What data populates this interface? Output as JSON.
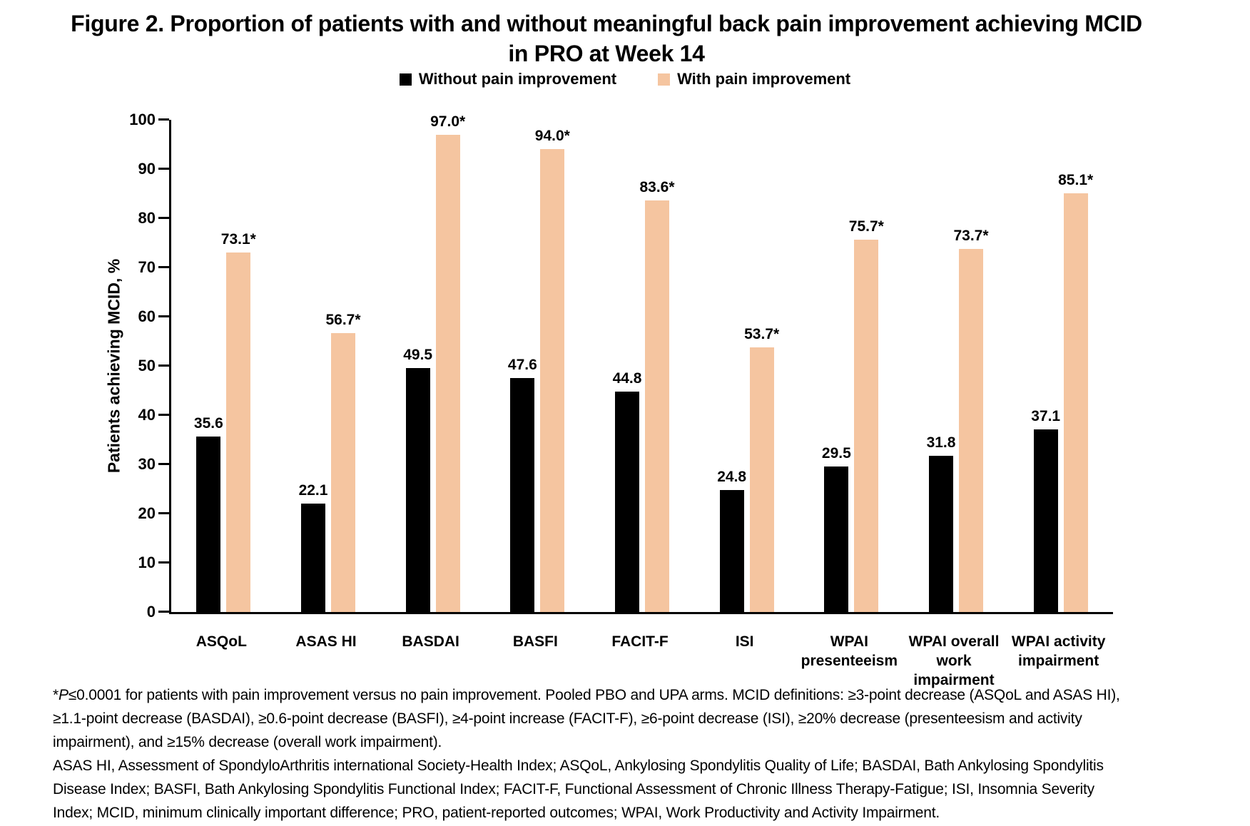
{
  "figure": {
    "title_line1": "Figure 2. Proportion of patients with and without meaningful back pain improvement achieving MCID",
    "title_line2": "in PRO at Week 14"
  },
  "chart_data": {
    "type": "bar",
    "title": "Figure 2. Proportion of patients with and without meaningful back pain improvement achieving MCID in PRO at Week 14",
    "xlabel": "",
    "ylabel": "Patients achieving MCID, %",
    "ylim": [
      0,
      100
    ],
    "ytick_step": 10,
    "grid": false,
    "legend_position": "top-center",
    "categories": [
      "ASQoL",
      "ASAS HI",
      "BASDAI",
      "BASFI",
      "FACIT-F",
      "ISI",
      "WPAI presenteeism",
      "WPAI overall work impairment",
      "WPAI activity impairment"
    ],
    "category_lines": [
      [
        "ASQoL"
      ],
      [
        "ASAS HI"
      ],
      [
        "BASDAI"
      ],
      [
        "BASFI"
      ],
      [
        "FACIT-F"
      ],
      [
        "ISI"
      ],
      [
        "WPAI",
        "presenteeism"
      ],
      [
        "WPAI overall",
        "work",
        "impairment"
      ],
      [
        "WPAI activity",
        "impairment"
      ]
    ],
    "series": [
      {
        "name": "Without pain improvement",
        "color": "#000000",
        "values": [
          35.6,
          22.1,
          49.5,
          47.6,
          44.8,
          24.8,
          29.5,
          31.8,
          37.1
        ],
        "bar_labels": [
          "35.6",
          "22.1",
          "49.5",
          "47.6",
          "44.8",
          "24.8",
          "29.5",
          "31.8",
          "37.1"
        ]
      },
      {
        "name": "With pain improvement",
        "color": "#F5C5A0",
        "values": [
          73.1,
          56.7,
          97.0,
          94.0,
          83.6,
          53.7,
          75.7,
          73.7,
          85.1
        ],
        "bar_labels": [
          "73.1*",
          "56.7*",
          "97.0*",
          "94.0*",
          "83.6*",
          "53.7*",
          "75.7*",
          "73.7*",
          "85.1*"
        ]
      }
    ]
  },
  "footnotes": {
    "p1_star": "*",
    "p1_italic": "P",
    "p1_rest": "≤0.0001 for patients with pain improvement versus no pain improvement. Pooled PBO and UPA arms. MCID definitions: ≥3-point decrease (ASQoL and ASAS HI), ≥1.1-point decrease (BASDAI), ≥0.6-point decrease (BASFI), ≥4-point increase (FACIT-F), ≥6-point decrease (ISI), ≥20% decrease (presenteesism and activity impairment), and ≥15% decrease (overall work impairment).",
    "p2": "ASAS HI, Assessment of SpondyloArthritis international Society-Health Index; ASQoL, Ankylosing Spondylitis Quality of Life; BASDAI, Bath Ankylosing Spondylitis Disease Index; BASFI, Bath Ankylosing Spondylitis Functional Index; FACIT-F, Functional Assessment of Chronic Illness Therapy-Fatigue; ISI, Insomnia Severity Index; MCID, minimum clinically important difference; PRO, patient-reported outcomes; WPAI, Work Productivity and Activity Impairment."
  }
}
